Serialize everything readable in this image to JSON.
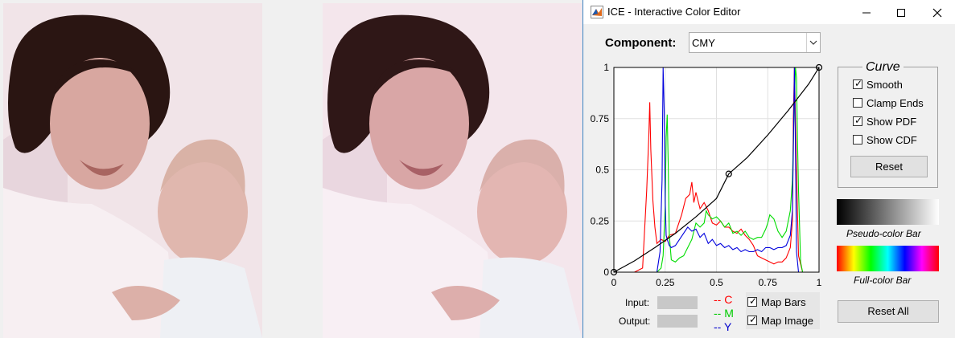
{
  "window": {
    "title": "ICE - Interactive Color Editor",
    "minimize_icon": "minimize-icon",
    "maximize_icon": "maximize-icon",
    "close_icon": "close-icon"
  },
  "component": {
    "label": "Component:",
    "selected": "CMY"
  },
  "curve_panel": {
    "title": "Curve",
    "smooth": {
      "label": "Smooth",
      "checked": true
    },
    "clamp_ends": {
      "label": "Clamp Ends",
      "checked": false
    },
    "show_pdf": {
      "label": "Show PDF",
      "checked": true
    },
    "show_cdf": {
      "label": "Show CDF",
      "checked": false
    },
    "reset_label": "Reset"
  },
  "bars": {
    "pseudo_caption": "Pseudo-color Bar",
    "full_caption": "Full-color Bar"
  },
  "io": {
    "input_label": "Input:",
    "output_label": "Output:"
  },
  "legend": [
    {
      "text": "-- C",
      "color": "#ff0000"
    },
    {
      "text": "-- M",
      "color": "#00cc00"
    },
    {
      "text": "-- Y",
      "color": "#0000cc"
    }
  ],
  "map_options": {
    "map_bars": {
      "label": "Map Bars",
      "checked": true
    },
    "map_image": {
      "label": "Map Image",
      "checked": true
    }
  },
  "reset_all_label": "Reset All",
  "chart_data": {
    "type": "line",
    "x_ticks": [
      "0",
      "0.25",
      "0.5",
      "0.75",
      "1"
    ],
    "y_ticks": [
      "0",
      "0.25",
      "0.5",
      "0.75",
      "1"
    ],
    "xlim": [
      0,
      1
    ],
    "ylim": [
      0,
      1
    ],
    "grid": true,
    "curve": {
      "x": [
        0,
        0.1,
        0.2,
        0.3,
        0.4,
        0.5,
        0.56,
        0.65,
        0.75,
        0.85,
        0.95,
        1.0
      ],
      "y": [
        0,
        0.055,
        0.12,
        0.19,
        0.27,
        0.36,
        0.48,
        0.56,
        0.67,
        0.79,
        0.92,
        1.0
      ]
    },
    "control_points": {
      "x": [
        0,
        0.56,
        1.0
      ],
      "y": [
        0,
        0.48,
        1.0
      ]
    },
    "series": [
      {
        "color": "#ff0000",
        "x": [
          0.1,
          0.14,
          0.16,
          0.17,
          0.175,
          0.18,
          0.19,
          0.2,
          0.21,
          0.23,
          0.25,
          0.27,
          0.3,
          0.33,
          0.35,
          0.37,
          0.38,
          0.39,
          0.4,
          0.42,
          0.44,
          0.46,
          0.48,
          0.5,
          0.52,
          0.54,
          0.56,
          0.58,
          0.6,
          0.62,
          0.64,
          0.66,
          0.68,
          0.7,
          0.72,
          0.74,
          0.76,
          0.78,
          0.8,
          0.82,
          0.84,
          0.86,
          0.87,
          0.875,
          0.88,
          0.89,
          0.9,
          0.92
        ],
        "y": [
          0,
          0.02,
          0.4,
          0.65,
          0.83,
          0.6,
          0.35,
          0.22,
          0.14,
          0.16,
          0.15,
          0.18,
          0.19,
          0.28,
          0.36,
          0.38,
          0.44,
          0.34,
          0.39,
          0.31,
          0.34,
          0.3,
          0.24,
          0.23,
          0.25,
          0.22,
          0.22,
          0.2,
          0.19,
          0.21,
          0.18,
          0.16,
          0.13,
          0.08,
          0.07,
          0.06,
          0.05,
          0.04,
          0.05,
          0.05,
          0.07,
          0.12,
          0.25,
          0.75,
          1.0,
          0.5,
          0.08,
          0
        ]
      },
      {
        "color": "#00dd00",
        "x": [
          0.21,
          0.23,
          0.24,
          0.25,
          0.255,
          0.26,
          0.265,
          0.27,
          0.28,
          0.3,
          0.32,
          0.34,
          0.36,
          0.38,
          0.4,
          0.42,
          0.44,
          0.45,
          0.46,
          0.48,
          0.5,
          0.52,
          0.54,
          0.56,
          0.58,
          0.6,
          0.62,
          0.64,
          0.66,
          0.68,
          0.7,
          0.72,
          0.74,
          0.75,
          0.76,
          0.78,
          0.8,
          0.82,
          0.84,
          0.86,
          0.87,
          0.88,
          0.885,
          0.89,
          0.895,
          0.9,
          0.91,
          0.92
        ],
        "y": [
          0,
          0.02,
          0.08,
          0.32,
          0.66,
          0.77,
          0.52,
          0.18,
          0.06,
          0.05,
          0.07,
          0.08,
          0.12,
          0.16,
          0.24,
          0.22,
          0.24,
          0.3,
          0.28,
          0.26,
          0.27,
          0.25,
          0.22,
          0.24,
          0.19,
          0.2,
          0.18,
          0.2,
          0.17,
          0.16,
          0.17,
          0.17,
          0.21,
          0.24,
          0.28,
          0.26,
          0.2,
          0.17,
          0.2,
          0.3,
          0.45,
          0.85,
          1.0,
          0.95,
          0.65,
          0.4,
          0.05,
          0
        ]
      },
      {
        "color": "#0000dd",
        "x": [
          0.21,
          0.225,
          0.235,
          0.24,
          0.245,
          0.25,
          0.255,
          0.26,
          0.27,
          0.28,
          0.3,
          0.32,
          0.34,
          0.36,
          0.38,
          0.4,
          0.42,
          0.44,
          0.46,
          0.48,
          0.5,
          0.52,
          0.54,
          0.56,
          0.58,
          0.6,
          0.62,
          0.64,
          0.66,
          0.68,
          0.7,
          0.72,
          0.74,
          0.76,
          0.78,
          0.8,
          0.82,
          0.84,
          0.86,
          0.87,
          0.875,
          0.88,
          0.885,
          0.89,
          0.9
        ],
        "y": [
          0,
          0.1,
          0.45,
          1.0,
          0.8,
          0.35,
          0.18,
          0.16,
          0.13,
          0.12,
          0.13,
          0.16,
          0.19,
          0.22,
          0.2,
          0.21,
          0.17,
          0.19,
          0.14,
          0.16,
          0.13,
          0.14,
          0.12,
          0.13,
          0.11,
          0.12,
          0.1,
          0.11,
          0.1,
          0.1,
          0.11,
          0.1,
          0.12,
          0.12,
          0.11,
          0.12,
          0.12,
          0.13,
          0.18,
          0.3,
          0.6,
          1.0,
          0.6,
          0.1,
          0
        ]
      }
    ]
  }
}
